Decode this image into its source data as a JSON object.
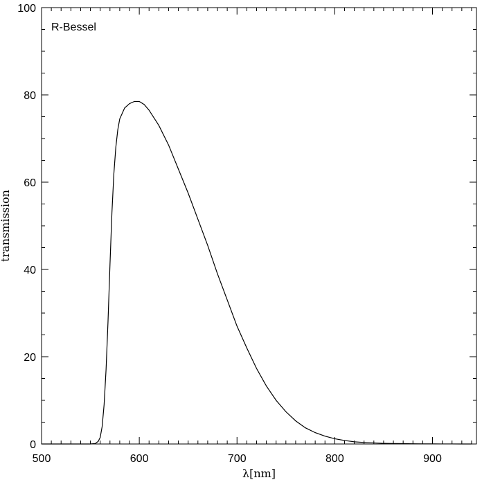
{
  "chart_data": {
    "type": "line",
    "title": "",
    "annotation": "R-Bessel",
    "xlabel": "λ[nm]",
    "ylabel": "transmission",
    "xlim": [
      500,
      945
    ],
    "ylim": [
      0,
      100
    ],
    "xticks": [
      500,
      600,
      700,
      800,
      900
    ],
    "yticks": [
      0,
      20,
      40,
      60,
      80,
      100
    ],
    "x_minor_step": 10,
    "y_minor_step": 5,
    "grid": false,
    "series": [
      {
        "x": [
          500,
          550,
          555,
          558,
          560,
          562,
          564,
          566,
          568,
          570,
          572,
          574,
          576,
          578,
          580,
          585,
          590,
          595,
          600,
          605,
          610,
          620,
          630,
          640,
          650,
          660,
          670,
          680,
          690,
          700,
          710,
          720,
          730,
          740,
          750,
          760,
          770,
          780,
          790,
          800,
          810,
          820,
          830,
          840,
          850,
          860,
          870,
          880,
          890,
          900,
          910,
          920,
          930,
          940
        ],
        "values": [
          0,
          0,
          0.1,
          0.6,
          1.5,
          4,
          9,
          17,
          28,
          41,
          53,
          62,
          68,
          72,
          74.5,
          77,
          78,
          78.5,
          78.5,
          77.8,
          76.5,
          73,
          68.5,
          63,
          57.5,
          51.5,
          45.5,
          39,
          33,
          27,
          22,
          17.3,
          13.3,
          10,
          7.4,
          5.3,
          3.7,
          2.6,
          1.8,
          1.2,
          0.8,
          0.5,
          0.35,
          0.25,
          0.15,
          0.1,
          0.08,
          0.05,
          0.03,
          0.02,
          0.01,
          0.01,
          0.0,
          0.0
        ]
      }
    ]
  }
}
